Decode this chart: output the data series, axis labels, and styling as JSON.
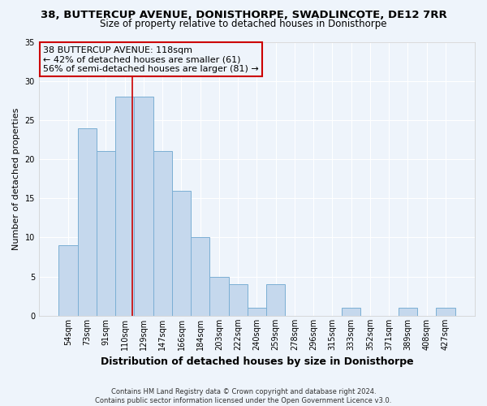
{
  "title1": "38, BUTTERCUP AVENUE, DONISTHORPE, SWADLINCOTE, DE12 7RR",
  "title2": "Size of property relative to detached houses in Donisthorpe",
  "xlabel": "Distribution of detached houses by size in Donisthorpe",
  "ylabel": "Number of detached properties",
  "footer1": "Contains HM Land Registry data © Crown copyright and database right 2024.",
  "footer2": "Contains public sector information licensed under the Open Government Licence v3.0.",
  "annotation_line1": "38 BUTTERCUP AVENUE: 118sqm",
  "annotation_line2": "← 42% of detached houses are smaller (61)",
  "annotation_line3": "56% of semi-detached houses are larger (81) →",
  "bar_labels": [
    "54sqm",
    "73sqm",
    "91sqm",
    "110sqm",
    "129sqm",
    "147sqm",
    "166sqm",
    "184sqm",
    "203sqm",
    "222sqm",
    "240sqm",
    "259sqm",
    "278sqm",
    "296sqm",
    "315sqm",
    "333sqm",
    "352sqm",
    "371sqm",
    "389sqm",
    "408sqm",
    "427sqm"
  ],
  "bar_values": [
    9,
    24,
    21,
    28,
    28,
    21,
    16,
    10,
    5,
    4,
    1,
    4,
    0,
    0,
    0,
    1,
    0,
    0,
    1,
    0,
    1
  ],
  "bar_color": "#c5d8ed",
  "bar_edge_color": "#7bafd4",
  "vline_color": "#cc0000",
  "ylim": [
    0,
    35
  ],
  "yticks": [
    0,
    5,
    10,
    15,
    20,
    25,
    30,
    35
  ],
  "annotation_box_edge_color": "#cc0000",
  "bg_color": "#eef4fb",
  "grid_color": "#ffffff",
  "title1_fontsize": 9.5,
  "title2_fontsize": 8.5,
  "xlabel_fontsize": 9,
  "ylabel_fontsize": 8,
  "tick_fontsize": 7,
  "annotation_fontsize": 8,
  "footer_fontsize": 6
}
